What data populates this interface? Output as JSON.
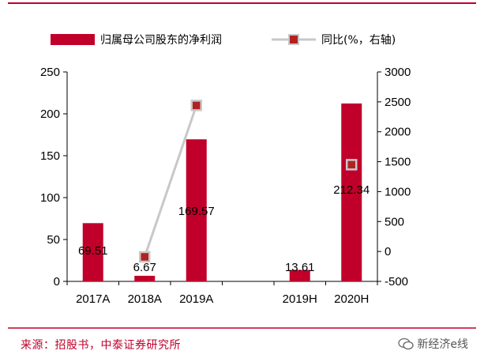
{
  "chart_data": {
    "type": "bar+line",
    "categories": [
      "2017A",
      "2018A",
      "2019A",
      "",
      "2019H",
      "2020H"
    ],
    "series": [
      {
        "name": "归属母公司股东的净利润",
        "axis": "left",
        "kind": "bar",
        "values": [
          69.51,
          6.67,
          169.57,
          null,
          13.61,
          212.34
        ],
        "labels": [
          "69.51",
          "6.67",
          "169.57",
          "",
          "13.61",
          "212.34"
        ]
      },
      {
        "name": "同比(%，右轴)",
        "axis": "right",
        "kind": "line",
        "values": [
          null,
          -90,
          2440,
          null,
          null,
          1450
        ]
      }
    ],
    "left_axis": {
      "min": 0,
      "max": 250,
      "ticks": [
        "0",
        "50",
        "100",
        "150",
        "200",
        "250"
      ]
    },
    "right_axis": {
      "min": -500,
      "max": 3000,
      "ticks": [
        "-500",
        "0",
        "500",
        "1000",
        "1500",
        "2000",
        "2500",
        "3000"
      ]
    },
    "colors": {
      "bar": "#c0002a",
      "line": "#c8c8c8",
      "marker_fill": "#b22222",
      "axis": "#000000",
      "rule": "#c0002a"
    }
  },
  "legend": {
    "bar_label": "归属母公司股东的净利润",
    "line_label": "同比(%，右轴)"
  },
  "footer": {
    "source": "来源：招股书，中泰证券研究所",
    "watermark": "新经济e线"
  }
}
